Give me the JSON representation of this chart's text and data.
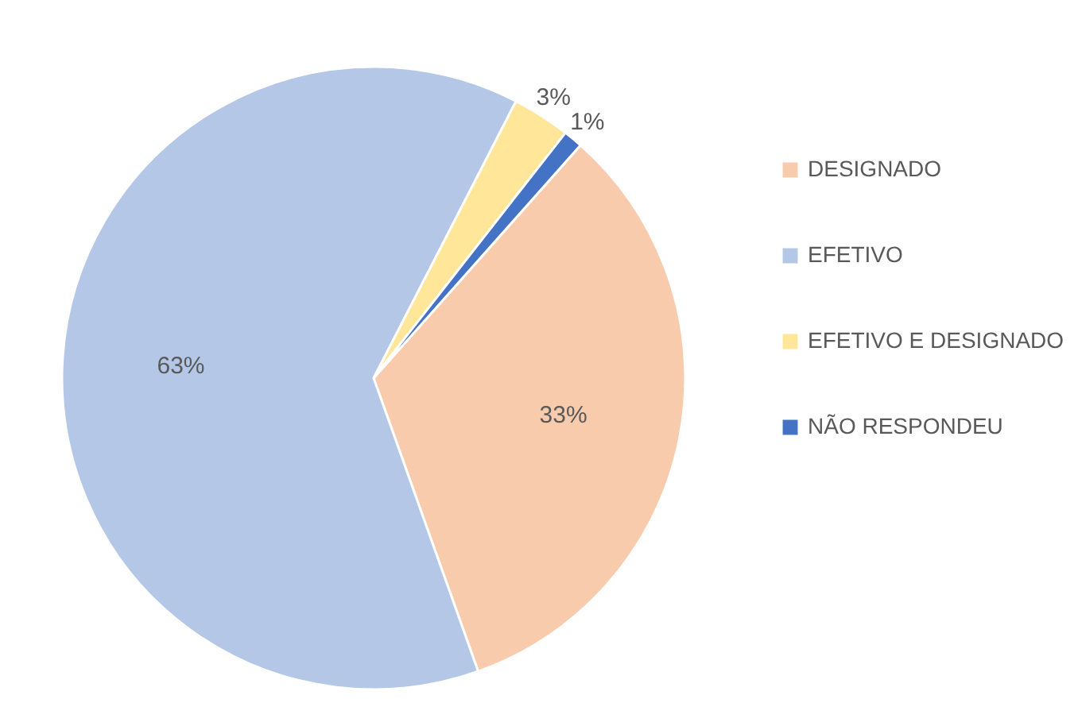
{
  "chart_data": {
    "type": "pie",
    "categories": [
      "DESIGNADO",
      "EFETIVO",
      "EFETIVO E DESIGNADO",
      "NÃO RESPONDEU"
    ],
    "values": [
      33,
      63,
      3,
      1
    ],
    "colors": [
      "#f8cbad",
      "#b4c7e7",
      "#ffe699",
      "#4472c4"
    ],
    "value_labels": [
      "33%",
      "63%",
      "3%",
      "1%"
    ],
    "legend": "right"
  }
}
